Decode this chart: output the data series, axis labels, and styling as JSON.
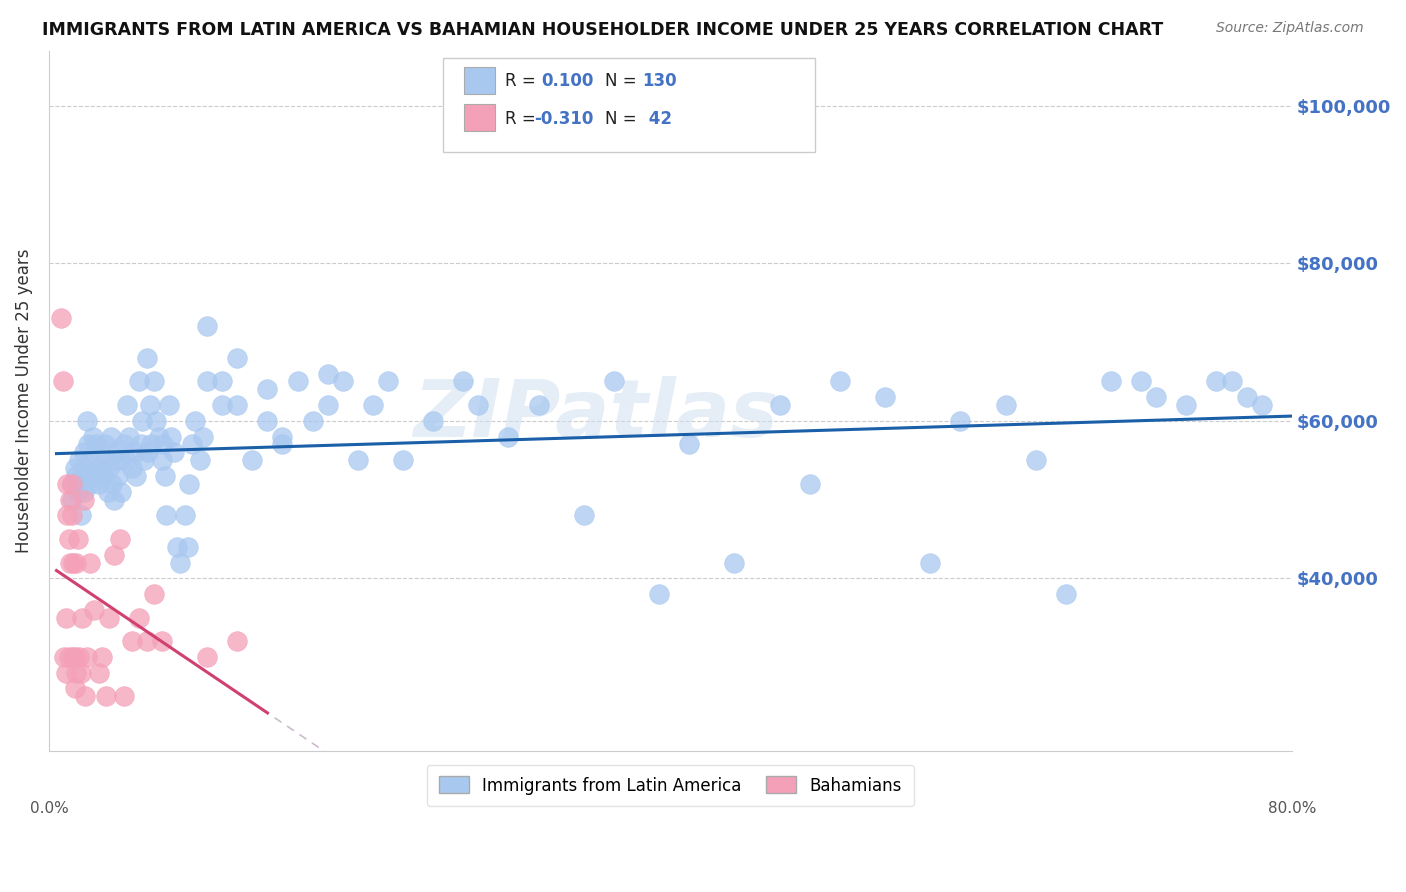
{
  "title": "IMMIGRANTS FROM LATIN AMERICA VS BAHAMIAN HOUSEHOLDER INCOME UNDER 25 YEARS CORRELATION CHART",
  "source": "Source: ZipAtlas.com",
  "ylabel": "Householder Income Under 25 years",
  "y_tick_labels": [
    "$40,000",
    "$60,000",
    "$80,000",
    "$100,000"
  ],
  "y_tick_values": [
    40000,
    60000,
    80000,
    100000
  ],
  "y_min": 18000,
  "y_max": 107000,
  "x_min": -0.005,
  "x_max": 0.82,
  "blue_color": "#A8C8F0",
  "pink_color": "#F4A0B8",
  "blue_line_color": "#1A5FA8",
  "pink_line_color": "#D04070",
  "watermark": "ZIPatlas",
  "blue_scatter_x": [
    0.01,
    0.01,
    0.012,
    0.013,
    0.014,
    0.015,
    0.015,
    0.016,
    0.017,
    0.018,
    0.018,
    0.019,
    0.02,
    0.021,
    0.022,
    0.023,
    0.024,
    0.025,
    0.026,
    0.027,
    0.028,
    0.029,
    0.03,
    0.031,
    0.032,
    0.033,
    0.034,
    0.035,
    0.036,
    0.037,
    0.038,
    0.04,
    0.041,
    0.042,
    0.043,
    0.045,
    0.046,
    0.047,
    0.048,
    0.05,
    0.052,
    0.053,
    0.055,
    0.056,
    0.057,
    0.058,
    0.06,
    0.061,
    0.062,
    0.063,
    0.065,
    0.066,
    0.068,
    0.07,
    0.071,
    0.072,
    0.073,
    0.075,
    0.076,
    0.078,
    0.08,
    0.082,
    0.085,
    0.087,
    0.088,
    0.09,
    0.092,
    0.095,
    0.097,
    0.1,
    0.1,
    0.11,
    0.11,
    0.12,
    0.12,
    0.13,
    0.14,
    0.14,
    0.15,
    0.15,
    0.16,
    0.17,
    0.18,
    0.18,
    0.19,
    0.2,
    0.21,
    0.22,
    0.23,
    0.25,
    0.27,
    0.28,
    0.3,
    0.32,
    0.35,
    0.37,
    0.4,
    0.42,
    0.45,
    0.48,
    0.5,
    0.52,
    0.55,
    0.58,
    0.6,
    0.63,
    0.65,
    0.67,
    0.7,
    0.72,
    0.73,
    0.75,
    0.77,
    0.78,
    0.79,
    0.8
  ],
  "blue_scatter_y": [
    52000,
    50000,
    54000,
    53000,
    51000,
    52000,
    55000,
    48000,
    53000,
    51000,
    56000,
    54000,
    60000,
    57000,
    52000,
    55000,
    58000,
    53000,
    57000,
    54000,
    52000,
    56000,
    54000,
    53000,
    57000,
    55000,
    51000,
    54000,
    58000,
    52000,
    50000,
    56000,
    53000,
    55000,
    51000,
    57000,
    55000,
    62000,
    58000,
    54000,
    56000,
    53000,
    65000,
    57000,
    60000,
    55000,
    68000,
    56000,
    62000,
    57000,
    65000,
    60000,
    58000,
    55000,
    57000,
    53000,
    48000,
    62000,
    58000,
    56000,
    44000,
    42000,
    48000,
    44000,
    52000,
    57000,
    60000,
    55000,
    58000,
    72000,
    65000,
    62000,
    65000,
    68000,
    62000,
    55000,
    64000,
    60000,
    58000,
    57000,
    65000,
    60000,
    66000,
    62000,
    65000,
    55000,
    62000,
    65000,
    55000,
    60000,
    65000,
    62000,
    58000,
    62000,
    48000,
    65000,
    38000,
    57000,
    42000,
    62000,
    52000,
    65000,
    63000,
    42000,
    60000,
    62000,
    55000,
    38000,
    65000,
    65000,
    63000,
    62000,
    65000,
    65000,
    63000,
    62000
  ],
  "pink_scatter_x": [
    0.003,
    0.004,
    0.005,
    0.006,
    0.006,
    0.007,
    0.007,
    0.008,
    0.008,
    0.009,
    0.009,
    0.01,
    0.01,
    0.011,
    0.011,
    0.012,
    0.012,
    0.013,
    0.013,
    0.014,
    0.015,
    0.016,
    0.017,
    0.018,
    0.019,
    0.02,
    0.022,
    0.025,
    0.028,
    0.03,
    0.033,
    0.035,
    0.038,
    0.042,
    0.045,
    0.05,
    0.055,
    0.06,
    0.065,
    0.07,
    0.1,
    0.12
  ],
  "pink_scatter_y": [
    73000,
    65000,
    30000,
    28000,
    35000,
    48000,
    52000,
    45000,
    30000,
    50000,
    42000,
    52000,
    48000,
    42000,
    30000,
    26000,
    30000,
    28000,
    42000,
    45000,
    30000,
    28000,
    35000,
    50000,
    25000,
    30000,
    42000,
    36000,
    28000,
    30000,
    25000,
    35000,
    43000,
    45000,
    25000,
    32000,
    35000,
    32000,
    38000,
    32000,
    30000,
    32000
  ]
}
